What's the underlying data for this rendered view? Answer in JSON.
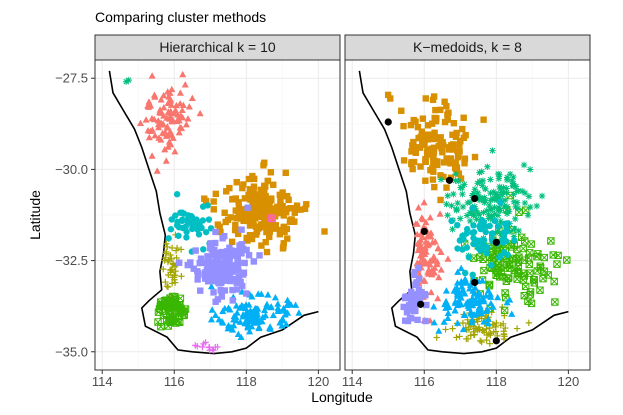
{
  "figure": {
    "title": "Comparing cluster methods",
    "xlabel": "Longitude",
    "ylabel": "Latitude"
  },
  "colors": {
    "strip_bg": "#d9d9d9",
    "panel_border": "#333333",
    "grid_major": "#ebebeb",
    "grid_minor": "#f5f5f5",
    "coast": "#000000",
    "medoid": "#000000",
    "palette": [
      "#F8766D",
      "#D89000",
      "#A3A500",
      "#39B600",
      "#00BF7D",
      "#00BFC4",
      "#00B0F6",
      "#9590FF",
      "#E76BF3",
      "#FF62BC"
    ]
  },
  "chart_data": [
    {
      "type": "scatter",
      "title": "Hierarchical k =  10",
      "k": 10,
      "xlim": [
        113.8,
        120.6
      ],
      "ylim": [
        -35.5,
        -27.0
      ],
      "x_ticks": [
        114,
        116,
        118,
        120
      ],
      "x_tick_labels": [
        "114",
        "116",
        "118",
        "120"
      ],
      "y_ticks": [
        -27.5,
        -30.0,
        -32.5,
        -35.0
      ],
      "y_tick_labels": [
        "−27.5",
        "−30.0",
        "−32.5",
        "−35.0"
      ],
      "clusters": [
        {
          "id": 1,
          "shape": "triangle",
          "center": [
            115.8,
            -28.6
          ],
          "spread": [
            0.6,
            0.9
          ],
          "count": 95
        },
        {
          "id": 2,
          "shape": "square",
          "center": [
            118.4,
            -31.2
          ],
          "spread": [
            1.0,
            0.9
          ],
          "count": 190
        },
        {
          "id": 3,
          "shape": "plus",
          "center": [
            115.9,
            -32.8
          ],
          "spread": [
            0.35,
            0.8
          ],
          "count": 45
        },
        {
          "id": 4,
          "shape": "boxx",
          "center": [
            115.9,
            -33.9
          ],
          "spread": [
            0.35,
            0.5
          ],
          "count": 60
        },
        {
          "id": 5,
          "shape": "asterisk",
          "center": [
            114.7,
            -27.6
          ],
          "spread": [
            0.05,
            0.05
          ],
          "count": 2
        },
        {
          "id": 6,
          "shape": "circle",
          "center": [
            116.6,
            -31.5
          ],
          "spread": [
            0.6,
            0.5
          ],
          "count": 50
        },
        {
          "id": 7,
          "shape": "triangle",
          "center": [
            118.2,
            -34.0
          ],
          "spread": [
            0.9,
            0.45
          ],
          "count": 120
        },
        {
          "id": 8,
          "shape": "square",
          "center": [
            117.3,
            -32.7
          ],
          "spread": [
            0.7,
            0.7
          ],
          "count": 160
        },
        {
          "id": 9,
          "shape": "plus",
          "center": [
            116.9,
            -34.9
          ],
          "spread": [
            0.4,
            0.12
          ],
          "count": 12
        },
        {
          "id": 10,
          "shape": "boxx",
          "center": [
            118.7,
            -31.3
          ],
          "spread": [
            0.1,
            0.1
          ],
          "count": 2
        }
      ]
    },
    {
      "type": "scatter",
      "title": "K−medoids, k = 8",
      "k": 8,
      "xlim": [
        113.8,
        120.6
      ],
      "ylim": [
        -35.5,
        -27.0
      ],
      "x_ticks": [
        114,
        116,
        118,
        120
      ],
      "x_tick_labels": [
        "114",
        "116",
        "118",
        "120"
      ],
      "y_ticks": [
        -27.5,
        -30.0,
        -32.5,
        -35.0
      ],
      "y_tick_labels": [
        "−27.5",
        "−30.0",
        "−32.5",
        "−35.0"
      ],
      "clusters": [
        {
          "id": 1,
          "shape": "triangle",
          "center": [
            116.0,
            -32.3
          ],
          "spread": [
            0.5,
            1.1
          ],
          "count": 90
        },
        {
          "id": 2,
          "shape": "square",
          "center": [
            116.3,
            -29.3
          ],
          "spread": [
            0.9,
            1.0
          ],
          "count": 130
        },
        {
          "id": 3,
          "shape": "plus",
          "center": [
            117.6,
            -34.3
          ],
          "spread": [
            0.7,
            0.4
          ],
          "count": 80
        },
        {
          "id": 4,
          "shape": "boxx",
          "center": [
            118.5,
            -32.6
          ],
          "spread": [
            1.0,
            0.9
          ],
          "count": 110
        },
        {
          "id": 5,
          "shape": "asterisk",
          "center": [
            117.8,
            -30.9
          ],
          "spread": [
            1.0,
            0.8
          ],
          "count": 150
        },
        {
          "id": 6,
          "shape": "circle",
          "center": [
            117.6,
            -31.9
          ],
          "spread": [
            0.8,
            0.6
          ],
          "count": 70
        },
        {
          "id": 7,
          "shape": "triangle",
          "center": [
            117.2,
            -33.6
          ],
          "spread": [
            0.8,
            0.6
          ],
          "count": 110
        },
        {
          "id": 8,
          "shape": "square",
          "center": [
            115.6,
            -33.5
          ],
          "spread": [
            0.4,
            0.6
          ],
          "count": 50
        }
      ],
      "medoids": [
        {
          "lon": 115.0,
          "lat": -28.7
        },
        {
          "lon": 116.7,
          "lat": -30.3
        },
        {
          "lon": 117.4,
          "lat": -30.8
        },
        {
          "lon": 116.0,
          "lat": -31.7
        },
        {
          "lon": 118.0,
          "lat": -32.0
        },
        {
          "lon": 117.4,
          "lat": -33.1
        },
        {
          "lon": 115.9,
          "lat": -33.7
        },
        {
          "lon": 118.0,
          "lat": -34.7
        }
      ]
    }
  ],
  "coastline": [
    [
      114.2,
      -27.3
    ],
    [
      114.3,
      -27.9
    ],
    [
      114.6,
      -28.4
    ],
    [
      114.9,
      -28.9
    ],
    [
      115.1,
      -29.4
    ],
    [
      115.3,
      -30.0
    ],
    [
      115.5,
      -30.6
    ],
    [
      115.6,
      -31.2
    ],
    [
      115.75,
      -31.8
    ],
    [
      115.7,
      -32.3
    ],
    [
      115.6,
      -32.8
    ],
    [
      115.65,
      -33.3
    ],
    [
      115.3,
      -33.6
    ],
    [
      115.1,
      -33.8
    ],
    [
      115.2,
      -34.3
    ],
    [
      115.8,
      -34.6
    ],
    [
      116.1,
      -34.95
    ],
    [
      116.5,
      -35.0
    ],
    [
      117.1,
      -35.05
    ],
    [
      117.6,
      -35.0
    ],
    [
      118.0,
      -34.9
    ],
    [
      118.4,
      -34.6
    ],
    [
      119.0,
      -34.4
    ],
    [
      119.6,
      -34.0
    ],
    [
      120.0,
      -33.9
    ]
  ]
}
